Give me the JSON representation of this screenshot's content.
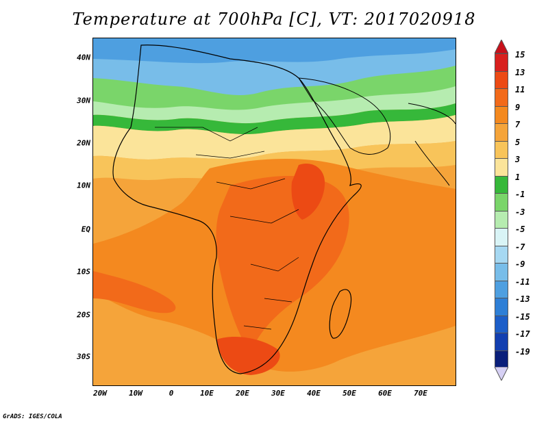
{
  "title": "Temperature at 700hPa [C], VT: 2017020918",
  "footer": "GrADS: IGES/COLA",
  "x_ticks": [
    "20W",
    "10W",
    "0",
    "10E",
    "20E",
    "30E",
    "40E",
    "50E",
    "60E",
    "70E"
  ],
  "y_ticks": [
    "40N",
    "30N",
    "20N",
    "10N",
    "EQ",
    "10S",
    "20S",
    "30S"
  ],
  "colorbar": {
    "labels": [
      "15",
      "13",
      "11",
      "9",
      "7",
      "5",
      "3",
      "1",
      "-1",
      "-3",
      "-5",
      "-7",
      "-9",
      "-11",
      "-13",
      "-15",
      "-17",
      "-19"
    ],
    "colors": [
      "#d8201e",
      "#ec4a14",
      "#f26a1a",
      "#f4891f",
      "#f5a43a",
      "#f8c45a",
      "#fbe49a",
      "#36b83a",
      "#7ad56a",
      "#b6ecb0",
      "#d9f4f6",
      "#a6d8f2",
      "#78bde9",
      "#4e9fe0",
      "#2e7fd6",
      "#1c5ec8",
      "#123fb0",
      "#0a1f7a"
    ],
    "top_arrow_color": "#c8101a",
    "bottom_arrow_color": "#d6d0f4"
  }
}
